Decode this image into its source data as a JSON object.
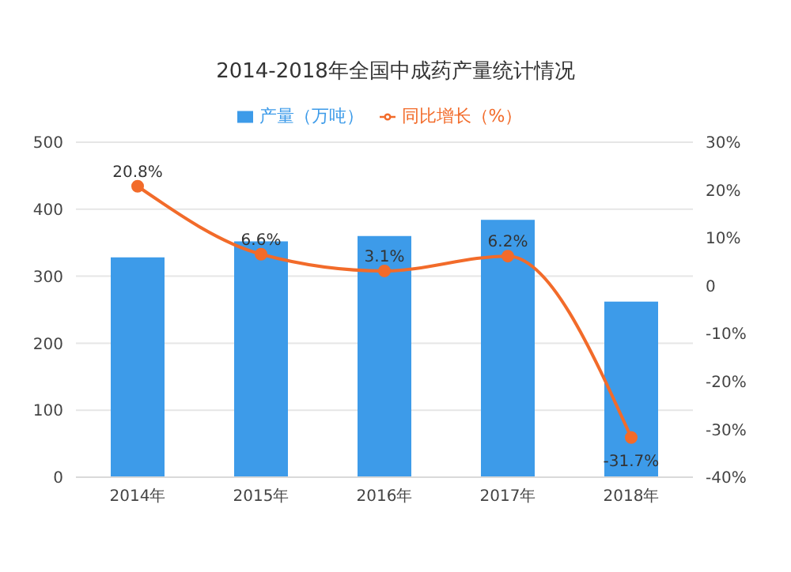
{
  "chart_data": {
    "type": "bar",
    "title": "2014-2018年全国中成药产量统计情况",
    "categories": [
      "2014年",
      "2015年",
      "2016年",
      "2017年",
      "2018年"
    ],
    "series": [
      {
        "name": "产量（万吨）",
        "color": "#3d9be9",
        "values": [
          328,
          352,
          360,
          384,
          262
        ]
      },
      {
        "name": "同比增长（%）",
        "type": "line",
        "axis": "y2",
        "color": "#f26b2a",
        "values": [
          20.8,
          6.6,
          3.1,
          6.2,
          -31.7
        ],
        "value_labels": [
          "20.8%",
          "6.6%",
          "3.1%",
          "6.2%",
          "-31.7%"
        ]
      }
    ],
    "ylim": [
      0,
      500
    ],
    "yticks": [
      0,
      100,
      200,
      300,
      400,
      500
    ],
    "y2lim": [
      -40,
      30
    ],
    "y2ticks": [
      {
        "value": -40,
        "label": "-40%"
      },
      {
        "value": -30,
        "label": "-30%"
      },
      {
        "value": -20,
        "label": "-20%"
      },
      {
        "value": -10,
        "label": "-10%"
      },
      0,
      {
        "value": 10,
        "label": "10%"
      },
      {
        "value": 20,
        "label": "20%"
      },
      {
        "value": 30,
        "label": "30%"
      }
    ],
    "grid": "y",
    "legend": "top",
    "marker": "circle"
  }
}
